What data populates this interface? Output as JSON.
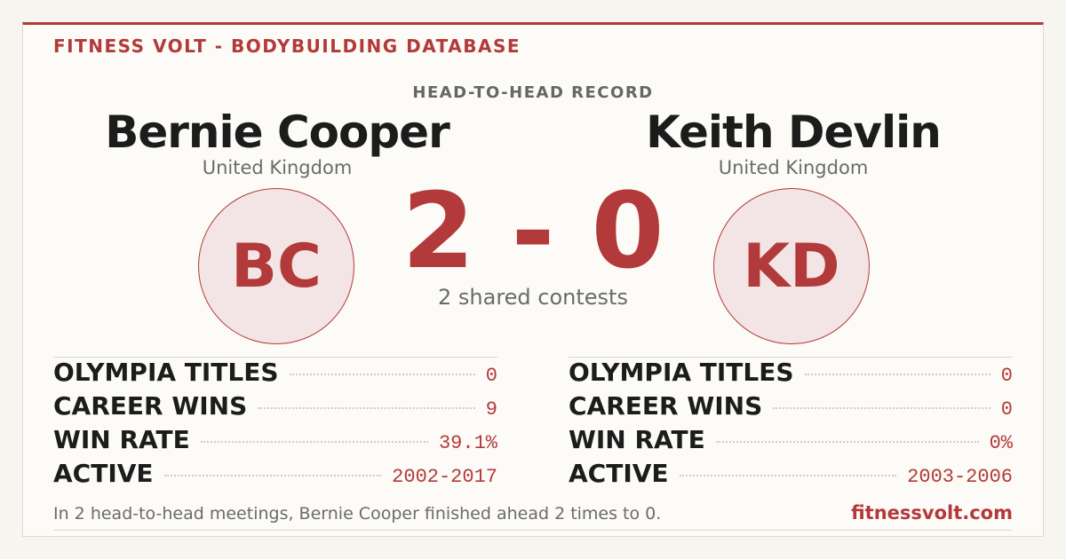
{
  "header": {
    "brand": "FITNESS VOLT - BODYBUILDING DATABASE",
    "section": "HEAD-TO-HEAD RECORD"
  },
  "athletes": [
    {
      "name": "Bernie Cooper",
      "country": "United Kingdom",
      "initials": "BC",
      "stats": [
        {
          "label": "OLYMPIA TITLES",
          "value": "0"
        },
        {
          "label": "CAREER WINS",
          "value": "9"
        },
        {
          "label": "WIN RATE",
          "value": "39.1%"
        },
        {
          "label": "ACTIVE",
          "value": "2002-2017"
        }
      ]
    },
    {
      "name": "Keith Devlin",
      "country": "United Kingdom",
      "initials": "KD",
      "stats": [
        {
          "label": "OLYMPIA TITLES",
          "value": "0"
        },
        {
          "label": "CAREER WINS",
          "value": "0"
        },
        {
          "label": "WIN RATE",
          "value": "0%"
        },
        {
          "label": "ACTIVE",
          "value": "2003-2006"
        }
      ]
    }
  ],
  "score": {
    "text": "2 - 0",
    "caption": "2 shared contests"
  },
  "footer": {
    "summary": "In 2 head-to-head meetings, Bernie Cooper finished ahead 2 times to 0.",
    "site": "fitnessvolt.com"
  }
}
